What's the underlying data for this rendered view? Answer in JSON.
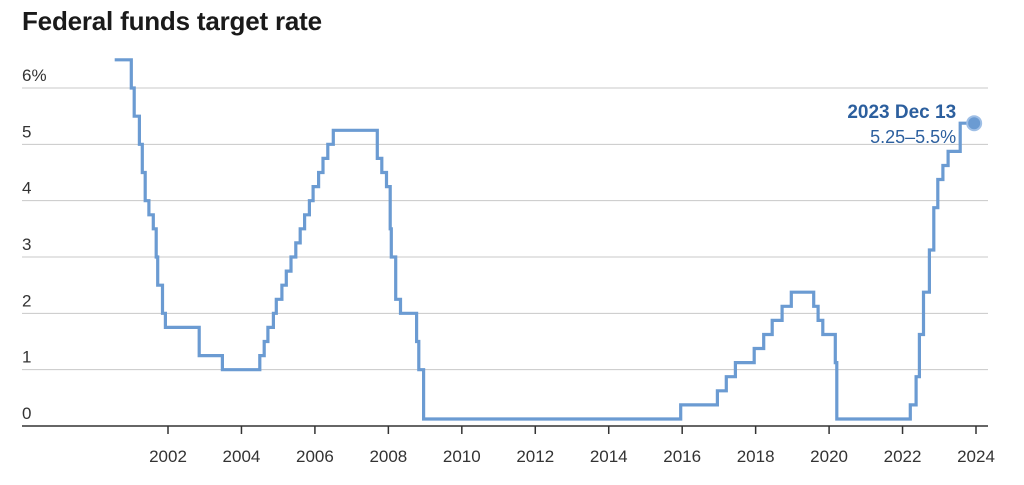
{
  "chart_data": {
    "type": "line",
    "title": "Federal funds target rate",
    "xlabel": "",
    "ylabel": "",
    "xlim": [
      1999.7,
      2024.4
    ],
    "ylim": [
      0,
      6.5
    ],
    "x_ticks": [
      2002,
      2004,
      2006,
      2008,
      2010,
      2012,
      2014,
      2016,
      2018,
      2020,
      2022,
      2024
    ],
    "x_tick_labels": [
      "2002",
      "2004",
      "2006",
      "2008",
      "2010",
      "2012",
      "2014",
      "2016",
      "2018",
      "2020",
      "2022",
      "2024"
    ],
    "y_ticks": [
      0,
      1,
      2,
      3,
      4,
      5,
      6
    ],
    "y_tick_labels": [
      "0",
      "1",
      "2",
      "3",
      "4",
      "5",
      "6%"
    ],
    "grid": "horizontal",
    "line_color": "#6b9bd2",
    "annotation": {
      "date": "2023 Dec 13",
      "value": "5.25–5.5%",
      "x": 2023.95,
      "y": 5.375,
      "color": "#2c5f9e"
    },
    "series": [
      {
        "step": true,
        "points": [
          [
            2000.55,
            6.5
          ],
          [
            2001.0,
            6.0
          ],
          [
            2001.08,
            5.5
          ],
          [
            2001.22,
            5.0
          ],
          [
            2001.3,
            4.5
          ],
          [
            2001.38,
            4.0
          ],
          [
            2001.48,
            3.75
          ],
          [
            2001.6,
            3.5
          ],
          [
            2001.68,
            3.0
          ],
          [
            2001.72,
            2.5
          ],
          [
            2001.85,
            2.0
          ],
          [
            2001.93,
            1.75
          ],
          [
            2002.85,
            1.25
          ],
          [
            2003.48,
            1.0
          ],
          [
            2004.5,
            1.25
          ],
          [
            2004.62,
            1.5
          ],
          [
            2004.72,
            1.75
          ],
          [
            2004.87,
            2.0
          ],
          [
            2004.95,
            2.25
          ],
          [
            2005.1,
            2.5
          ],
          [
            2005.22,
            2.75
          ],
          [
            2005.35,
            3.0
          ],
          [
            2005.48,
            3.25
          ],
          [
            2005.6,
            3.5
          ],
          [
            2005.72,
            3.75
          ],
          [
            2005.85,
            4.0
          ],
          [
            2005.95,
            4.25
          ],
          [
            2006.1,
            4.5
          ],
          [
            2006.22,
            4.75
          ],
          [
            2006.35,
            5.0
          ],
          [
            2006.5,
            5.25
          ],
          [
            2007.7,
            4.75
          ],
          [
            2007.82,
            4.5
          ],
          [
            2007.95,
            4.25
          ],
          [
            2008.05,
            3.5
          ],
          [
            2008.08,
            3.0
          ],
          [
            2008.2,
            2.25
          ],
          [
            2008.33,
            2.0
          ],
          [
            2008.77,
            1.5
          ],
          [
            2008.83,
            1.0
          ],
          [
            2008.96,
            0.125
          ],
          [
            2015.96,
            0.375
          ],
          [
            2016.96,
            0.625
          ],
          [
            2017.2,
            0.875
          ],
          [
            2017.45,
            1.125
          ],
          [
            2017.96,
            1.375
          ],
          [
            2018.22,
            1.625
          ],
          [
            2018.45,
            1.875
          ],
          [
            2018.72,
            2.125
          ],
          [
            2018.97,
            2.375
          ],
          [
            2019.58,
            2.125
          ],
          [
            2019.7,
            1.875
          ],
          [
            2019.83,
            1.625
          ],
          [
            2020.17,
            1.125
          ],
          [
            2020.21,
            0.125
          ],
          [
            2022.21,
            0.375
          ],
          [
            2022.37,
            0.875
          ],
          [
            2022.46,
            1.625
          ],
          [
            2022.57,
            2.375
          ],
          [
            2022.73,
            3.125
          ],
          [
            2022.85,
            3.875
          ],
          [
            2022.96,
            4.375
          ],
          [
            2023.1,
            4.625
          ],
          [
            2023.24,
            4.875
          ],
          [
            2023.57,
            5.375
          ],
          [
            2023.95,
            5.375
          ]
        ]
      }
    ]
  }
}
